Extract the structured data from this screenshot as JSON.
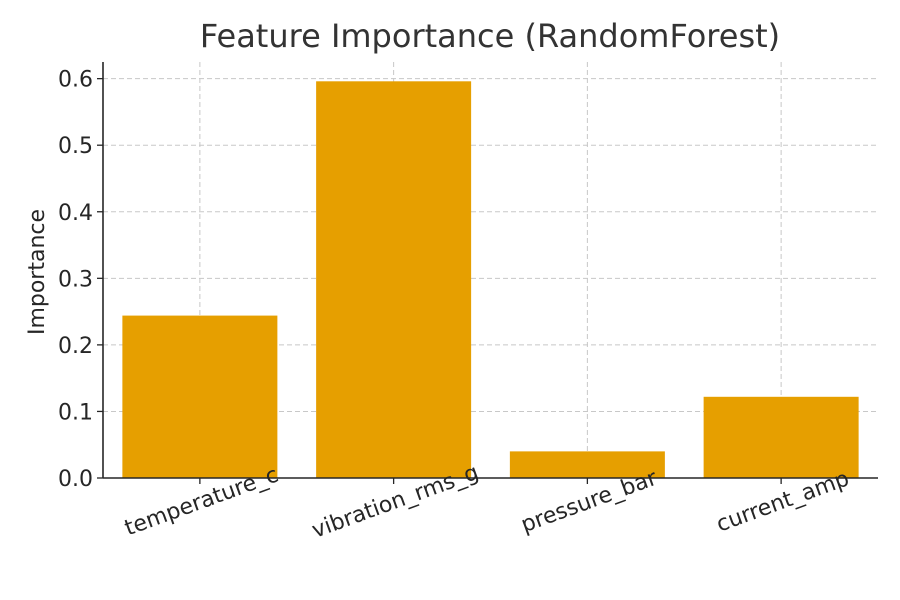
{
  "chart_data": {
    "type": "bar",
    "title": "Feature Importance (RandomForest)",
    "xlabel": "",
    "ylabel": "Importance",
    "categories": [
      "temperature_c",
      "vibration_rms_g",
      "pressure_bar",
      "current_amp"
    ],
    "values": [
      0.244,
      0.596,
      0.04,
      0.122
    ],
    "ylim": [
      0,
      0.625
    ],
    "yticks": [
      0.0,
      0.1,
      0.2,
      0.3,
      0.4,
      0.5,
      0.6
    ],
    "ytick_labels": [
      "0.0",
      "0.1",
      "0.2",
      "0.3",
      "0.4",
      "0.5",
      "0.6"
    ],
    "grid": true,
    "bar_color": "#E69F00"
  }
}
